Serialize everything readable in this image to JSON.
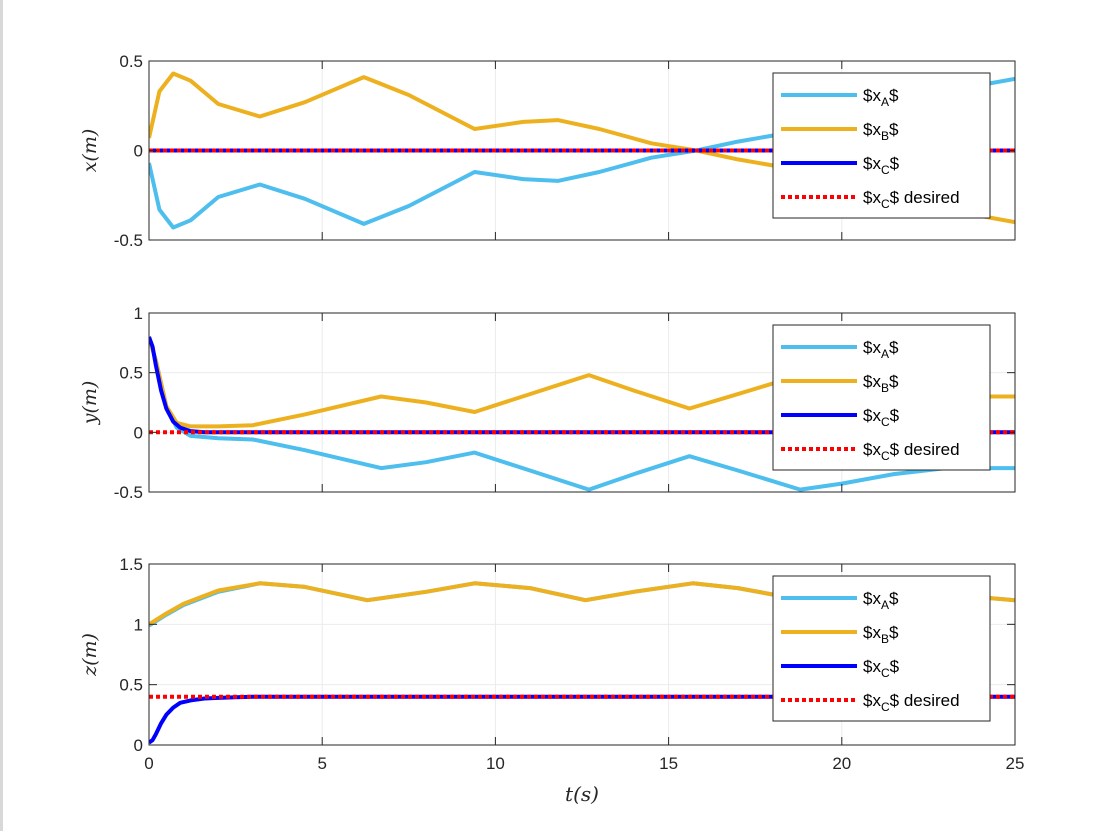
{
  "figure": {
    "background": "#ffffff",
    "axes_color": "#262626",
    "grid_color": "#ebebeb"
  },
  "chart_data": [
    {
      "type": "line",
      "ylabel": "x(m)",
      "xlabel": "",
      "xlim": [
        0,
        25
      ],
      "ylim": [
        -0.5,
        0.5
      ],
      "xticks": [
        0,
        5,
        10,
        15,
        20,
        25
      ],
      "show_xtick_labels": false,
      "yticks": [
        -0.5,
        0,
        0.5
      ],
      "ytick_labels": [
        "-0.5",
        "0",
        "0.5"
      ],
      "grid": true,
      "legend_position": "top-right",
      "series": [
        {
          "name": "$x_A$",
          "color": "#4dbeee",
          "width": 4,
          "dash": "none",
          "x": [
            0,
            0.3,
            0.7,
            1.2,
            2,
            3.2,
            4.5,
            6.2,
            7.5,
            9.4,
            10.8,
            11.8,
            13,
            14.5,
            15.8,
            17,
            18.5,
            20,
            21.5,
            23,
            25
          ],
          "y": [
            -0.07,
            -0.33,
            -0.43,
            -0.39,
            -0.26,
            -0.19,
            -0.27,
            -0.41,
            -0.31,
            -0.12,
            -0.16,
            -0.17,
            -0.12,
            -0.04,
            0.0,
            0.05,
            0.1,
            0.18,
            0.27,
            0.33,
            0.4
          ]
        },
        {
          "name": "$x_B$",
          "color": "#edb120",
          "width": 4,
          "dash": "none",
          "x": [
            0,
            0.3,
            0.7,
            1.2,
            2,
            3.2,
            4.5,
            6.2,
            7.5,
            9.4,
            10.8,
            11.8,
            13,
            14.5,
            15.8,
            17,
            18.5,
            20,
            21.5,
            23,
            25
          ],
          "y": [
            0.07,
            0.33,
            0.43,
            0.39,
            0.26,
            0.19,
            0.27,
            0.41,
            0.31,
            0.12,
            0.16,
            0.17,
            0.12,
            0.04,
            0.0,
            -0.05,
            -0.1,
            -0.18,
            -0.27,
            -0.33,
            -0.4
          ]
        },
        {
          "name": "$x_C$",
          "color": "#0000ff",
          "width": 4,
          "dash": "none",
          "x": [
            0,
            25
          ],
          "y": [
            0,
            0
          ]
        },
        {
          "name": "$x_C$ desired",
          "color": "#ff0000",
          "width": 4,
          "dash": "4,3",
          "x": [
            0,
            25
          ],
          "y": [
            0,
            0
          ]
        }
      ]
    },
    {
      "type": "line",
      "ylabel": "y(m)",
      "xlabel": "",
      "xlim": [
        0,
        25
      ],
      "ylim": [
        -0.5,
        1
      ],
      "xticks": [
        0,
        5,
        10,
        15,
        20,
        25
      ],
      "show_xtick_labels": false,
      "yticks": [
        -0.5,
        0,
        0.5,
        1
      ],
      "ytick_labels": [
        "-0.5",
        "0",
        "0.5",
        "1"
      ],
      "grid": true,
      "legend_position": "top-right",
      "series": [
        {
          "name": "$x_A$",
          "color": "#4dbeee",
          "width": 4,
          "dash": "none",
          "x": [
            0,
            0.2,
            0.5,
            0.8,
            1.2,
            2,
            3,
            4.5,
            6.7,
            8,
            9.4,
            11,
            12.7,
            14,
            15.6,
            17,
            18.8,
            20,
            21.5,
            23,
            25
          ],
          "y": [
            0.8,
            0.6,
            0.22,
            0.04,
            -0.03,
            -0.05,
            -0.06,
            -0.15,
            -0.3,
            -0.25,
            -0.17,
            -0.32,
            -0.48,
            -0.35,
            -0.2,
            -0.32,
            -0.48,
            -0.43,
            -0.35,
            -0.3,
            -0.3
          ]
        },
        {
          "name": "$x_B$",
          "color": "#edb120",
          "width": 4,
          "dash": "none",
          "x": [
            0,
            0.2,
            0.5,
            0.8,
            1.2,
            2,
            3,
            4.5,
            6.7,
            8,
            9.4,
            11,
            12.7,
            14,
            15.6,
            17,
            18.8,
            20,
            21.5,
            23,
            25
          ],
          "y": [
            0.8,
            0.6,
            0.22,
            0.08,
            0.05,
            0.05,
            0.06,
            0.15,
            0.3,
            0.25,
            0.17,
            0.32,
            0.48,
            0.35,
            0.2,
            0.32,
            0.48,
            0.43,
            0.35,
            0.3,
            0.3
          ]
        },
        {
          "name": "$x_C$",
          "color": "#0000ff",
          "width": 4,
          "dash": "none",
          "x": [
            0,
            0.1,
            0.2,
            0.35,
            0.5,
            0.7,
            0.9,
            1.2,
            1.6,
            2,
            25
          ],
          "y": [
            0.8,
            0.72,
            0.56,
            0.35,
            0.2,
            0.09,
            0.04,
            0.01,
            0.0,
            0.0,
            0.0
          ]
        },
        {
          "name": "$x_C$ desired",
          "color": "#ff0000",
          "width": 4,
          "dash": "4,3",
          "x": [
            0,
            25
          ],
          "y": [
            0,
            0
          ]
        }
      ]
    },
    {
      "type": "line",
      "ylabel": "z(m)",
      "xlabel": "t(s)",
      "xlim": [
        0,
        25
      ],
      "ylim": [
        0,
        1.5
      ],
      "xticks": [
        0,
        5,
        10,
        15,
        20,
        25
      ],
      "xtick_labels": [
        "0",
        "5",
        "10",
        "15",
        "20",
        "25"
      ],
      "show_xtick_labels": true,
      "yticks": [
        0,
        0.5,
        1,
        1.5
      ],
      "ytick_labels": [
        "0",
        "0.5",
        "1",
        "1.5"
      ],
      "grid": true,
      "legend_position": "top-right",
      "series": [
        {
          "name": "$x_A$",
          "color": "#4dbeee",
          "width": 4,
          "dash": "none",
          "x": [
            0,
            0.5,
            1,
            2,
            3.2,
            4.5,
            6.3,
            8,
            9.4,
            11,
            12.6,
            14,
            15.7,
            17,
            18.9,
            20,
            21.5,
            23,
            25
          ],
          "y": [
            0.99,
            1.08,
            1.16,
            1.27,
            1.34,
            1.31,
            1.2,
            1.27,
            1.34,
            1.3,
            1.2,
            1.27,
            1.34,
            1.3,
            1.2,
            1.27,
            1.3,
            1.25,
            1.2
          ]
        },
        {
          "name": "$x_B$",
          "color": "#edb120",
          "width": 4,
          "dash": "none",
          "x": [
            0,
            0.5,
            1,
            2,
            3.2,
            4.5,
            6.3,
            8,
            9.4,
            11,
            12.6,
            14,
            15.7,
            17,
            18.9,
            20,
            21.5,
            23,
            25
          ],
          "y": [
            1.0,
            1.09,
            1.17,
            1.28,
            1.34,
            1.31,
            1.2,
            1.27,
            1.34,
            1.3,
            1.2,
            1.27,
            1.34,
            1.3,
            1.2,
            1.27,
            1.3,
            1.25,
            1.2
          ]
        },
        {
          "name": "$x_C$",
          "color": "#0000ff",
          "width": 4,
          "dash": "none",
          "x": [
            0,
            0.1,
            0.2,
            0.35,
            0.5,
            0.7,
            0.9,
            1.2,
            1.6,
            2,
            2.5,
            3,
            25
          ],
          "y": [
            0.02,
            0.04,
            0.09,
            0.18,
            0.25,
            0.31,
            0.35,
            0.37,
            0.385,
            0.39,
            0.395,
            0.4,
            0.4
          ]
        },
        {
          "name": "$x_C$ desired",
          "color": "#ff0000",
          "width": 4,
          "dash": "4,3",
          "x": [
            0,
            25
          ],
          "y": [
            0.4,
            0.4
          ]
        }
      ]
    }
  ]
}
